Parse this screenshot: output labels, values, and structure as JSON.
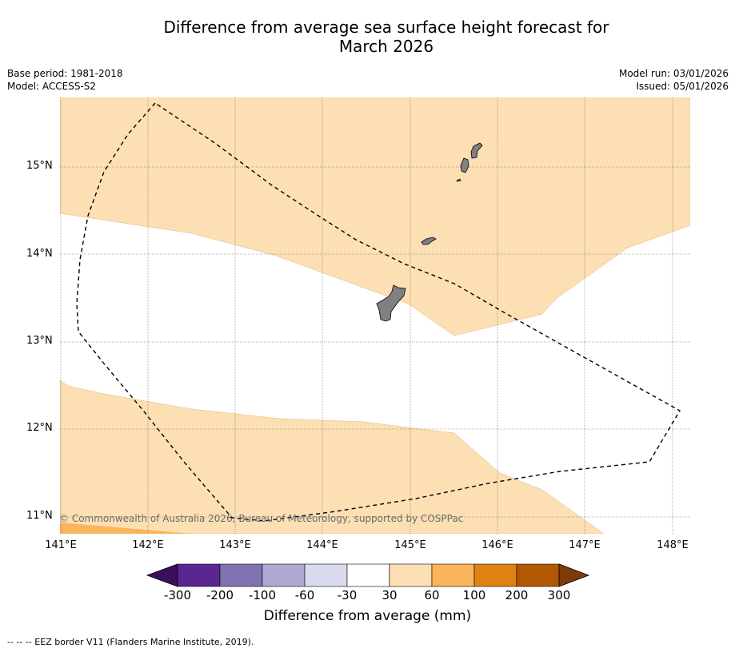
{
  "title_line1": "Difference from average sea surface height forecast for",
  "title_line2": "March 2026",
  "base_period": "Base period: 1981-2018",
  "model": "Model: ACCESS-S2",
  "model_run": "Model run: 03/01/2026",
  "issued": "Issued: 05/01/2026",
  "lat_ticks": [
    "15°N",
    "14°N",
    "13°N",
    "12°N",
    "11°N"
  ],
  "lon_ticks": [
    "141°E",
    "142°E",
    "143°E",
    "144°E",
    "145°E",
    "146°E",
    "147°E",
    "148°E"
  ],
  "copyright": "© Commonwealth of Australia 2026, Bureau of Meteorology, supported by COSPPac",
  "colorbar": {
    "ticks": [
      "-300",
      "-200",
      "-100",
      "-60",
      "-30",
      "30",
      "60",
      "100",
      "200",
      "300"
    ],
    "colors": [
      "#3a0f5c",
      "#5a2690",
      "#8173b2",
      "#b0a8d2",
      "#dadbee",
      "#ffffff",
      "#fddfb4",
      "#f9b45c",
      "#e08213",
      "#b25804",
      "#7e3a08"
    ],
    "label": "Difference from average (mm)"
  },
  "legend_eez": "--  --  -- EEZ border V11 (Flanders Marine Institute, 2019).",
  "fill_colors": {
    "light_orange": "#fddfb4",
    "orange": "#f9b45c",
    "land": "#808080"
  }
}
